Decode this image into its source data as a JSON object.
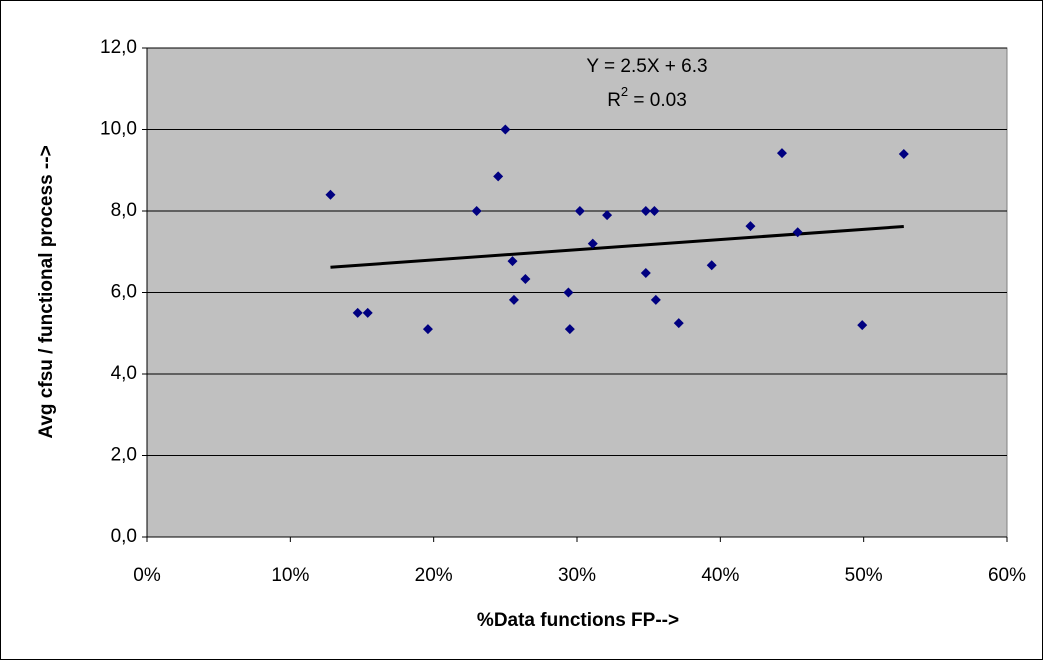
{
  "chart_data": {
    "type": "scatter",
    "x_label": "%Data functions FP-->",
    "y_label": "Avg cfsu / functional process -->",
    "x": [
      12.8,
      14.7,
      15.4,
      19.6,
      23.0,
      24.5,
      25.0,
      25.5,
      25.6,
      26.4,
      29.4,
      29.5,
      30.2,
      31.1,
      32.1,
      34.8,
      34.8,
      35.4,
      35.5,
      37.1,
      39.4,
      42.1,
      44.3,
      45.4,
      49.9,
      52.8
    ],
    "values": [
      8.4,
      5.5,
      5.5,
      5.1,
      8.0,
      8.85,
      10.0,
      6.77,
      5.82,
      6.33,
      6.0,
      5.1,
      8.0,
      7.2,
      7.9,
      6.48,
      8.0,
      8.0,
      5.82,
      5.25,
      6.67,
      7.63,
      9.42,
      7.48,
      5.2,
      9.4
    ],
    "color": "#000080",
    "trendline": {
      "x": [
        12.8,
        52.8
      ],
      "values": [
        6.62,
        7.62
      ],
      "color": "#000000"
    },
    "equation": "Y = 2.5X + 6.3",
    "r_squared": {
      "base": "R",
      "sup": "2",
      "rest": " = 0.03"
    },
    "xlim": [
      0,
      60
    ],
    "xticks": [
      {
        "value": 0,
        "label": "0%"
      },
      {
        "value": 10,
        "label": "10%"
      },
      {
        "value": 20,
        "label": "20%"
      },
      {
        "value": 30,
        "label": "30%"
      },
      {
        "value": 40,
        "label": "40%"
      },
      {
        "value": 50,
        "label": "50%"
      },
      {
        "value": 60,
        "label": "60%"
      }
    ],
    "ylim": [
      0,
      12
    ],
    "yticks": [
      {
        "value": 0,
        "label": "0,0"
      },
      {
        "value": 2,
        "label": "2,0"
      },
      {
        "value": 4,
        "label": "4,0"
      },
      {
        "value": 6,
        "label": "6,0"
      },
      {
        "value": 8,
        "label": "8,0"
      },
      {
        "value": 10,
        "label": "10,0"
      },
      {
        "value": 12,
        "label": "12,0"
      }
    ],
    "grid": true,
    "plot_background": "#c0c0c0"
  }
}
